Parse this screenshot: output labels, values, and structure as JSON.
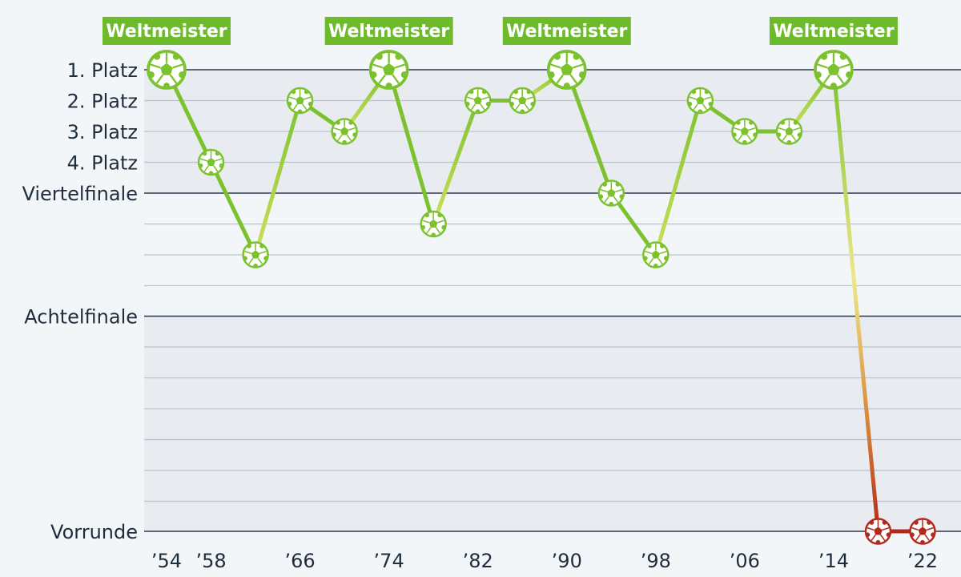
{
  "chart_data": {
    "type": "line",
    "title": "",
    "xlabel": "",
    "ylabel": "",
    "y_categories": [
      "1. Platz",
      "2. Platz",
      "3. Platz",
      "4. Platz",
      "Viertelfinale",
      "Achtelfinale",
      "Vorrunde"
    ],
    "x_tick_labels": [
      "’54",
      "’58",
      "’66",
      "’74",
      "’82",
      "’90",
      "’98",
      "’06",
      "’14",
      "’22"
    ],
    "x_tick_years": [
      1954,
      1958,
      1966,
      1974,
      1982,
      1990,
      1998,
      2006,
      2014,
      2022
    ],
    "series": [
      {
        "x": [
          1954,
          1958,
          1962,
          1966,
          1970,
          1974,
          1978,
          1982,
          1986,
          1990,
          1994,
          1998,
          2002,
          2006,
          2010,
          2014,
          2018,
          2022
        ],
        "values": [
          "1. Platz",
          "4. Platz",
          "Viertelfinale",
          "2. Platz",
          "3. Platz",
          "1. Platz",
          "Viertelfinale",
          "2. Platz",
          "2. Platz",
          "1. Platz",
          "Viertelfinale",
          "Viertelfinale",
          "2. Platz",
          "3. Platz",
          "3. Platz",
          "1. Platz",
          "Vorrunde",
          "Vorrunde"
        ]
      }
    ],
    "annotations": [
      {
        "x": 1954,
        "text": "Weltmeister"
      },
      {
        "x": 1974,
        "text": "Weltmeister"
      },
      {
        "x": 1990,
        "text": "Weltmeister"
      },
      {
        "x": 2014,
        "text": "Weltmeister"
      }
    ],
    "grid": true,
    "colors": {
      "line_good": "#7cc22e",
      "line_mid": "#f0e68a",
      "line_bad": "#b22a1b",
      "badge": "#6dbb2b",
      "band": "#e8ebf0",
      "major_grid": "#2a3a4e",
      "minor_grid": "#b9c2cd"
    }
  }
}
